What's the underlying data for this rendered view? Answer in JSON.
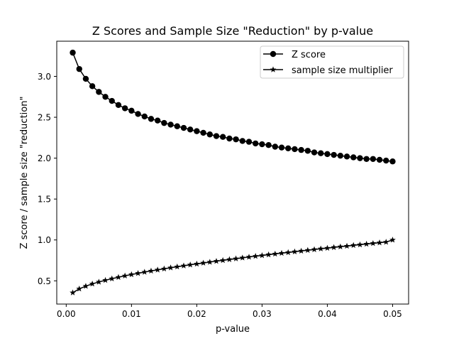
{
  "chart_data": {
    "type": "line",
    "title": "Z Scores and Sample Size \"Reduction\" by p-value",
    "xlabel": "p-value",
    "ylabel": "Z score / sample size \"reduction\"",
    "xlim": [
      -0.00145,
      0.05245
    ],
    "ylim": [
      0.216,
      3.43
    ],
    "xticks": [
      0.0,
      0.01,
      0.02,
      0.03,
      0.04,
      0.05
    ],
    "xtick_labels": [
      "0.00",
      "0.01",
      "0.02",
      "0.03",
      "0.04",
      "0.05"
    ],
    "yticks": [
      0.5,
      1.0,
      1.5,
      2.0,
      2.5,
      3.0
    ],
    "ytick_labels": [
      "0.5",
      "1.0",
      "1.5",
      "2.0",
      "2.5",
      "3.0"
    ],
    "grid": false,
    "legend_position": "top-right",
    "x": [
      0.001,
      0.002,
      0.003,
      0.004,
      0.005,
      0.006,
      0.007,
      0.008,
      0.009,
      0.01,
      0.011,
      0.012,
      0.013,
      0.014,
      0.015,
      0.016,
      0.017,
      0.018,
      0.019,
      0.02,
      0.021,
      0.022,
      0.023,
      0.024,
      0.025,
      0.026,
      0.027,
      0.028,
      0.029,
      0.03,
      0.031,
      0.032,
      0.033,
      0.034,
      0.035,
      0.036,
      0.037,
      0.038,
      0.039,
      0.04,
      0.041,
      0.042,
      0.043,
      0.044,
      0.045,
      0.046,
      0.047,
      0.048,
      0.049,
      0.05
    ],
    "series": [
      {
        "name": "Z score",
        "marker": "circle",
        "color": "#000000",
        "values": [
          3.29,
          3.09,
          2.97,
          2.88,
          2.81,
          2.75,
          2.7,
          2.65,
          2.61,
          2.58,
          2.54,
          2.51,
          2.48,
          2.46,
          2.43,
          2.41,
          2.39,
          2.37,
          2.35,
          2.33,
          2.31,
          2.29,
          2.27,
          2.26,
          2.24,
          2.23,
          2.21,
          2.2,
          2.18,
          2.17,
          2.16,
          2.14,
          2.13,
          2.12,
          2.11,
          2.1,
          2.09,
          2.07,
          2.06,
          2.05,
          2.04,
          2.03,
          2.02,
          2.01,
          2.0,
          1.99,
          1.99,
          1.98,
          1.97,
          1.96
        ]
      },
      {
        "name": "sample size multiplier",
        "marker": "star",
        "color": "#000000",
        "values": [
          0.355,
          0.402,
          0.435,
          0.463,
          0.486,
          0.507,
          0.526,
          0.544,
          0.561,
          0.577,
          0.592,
          0.607,
          0.621,
          0.634,
          0.647,
          0.66,
          0.672,
          0.684,
          0.696,
          0.707,
          0.718,
          0.729,
          0.74,
          0.75,
          0.761,
          0.771,
          0.781,
          0.791,
          0.801,
          0.81,
          0.82,
          0.829,
          0.838,
          0.847,
          0.856,
          0.865,
          0.874,
          0.883,
          0.892,
          0.9,
          0.909,
          0.917,
          0.925,
          0.934,
          0.942,
          0.95,
          0.958,
          0.966,
          0.974,
          1.0
        ]
      }
    ]
  }
}
